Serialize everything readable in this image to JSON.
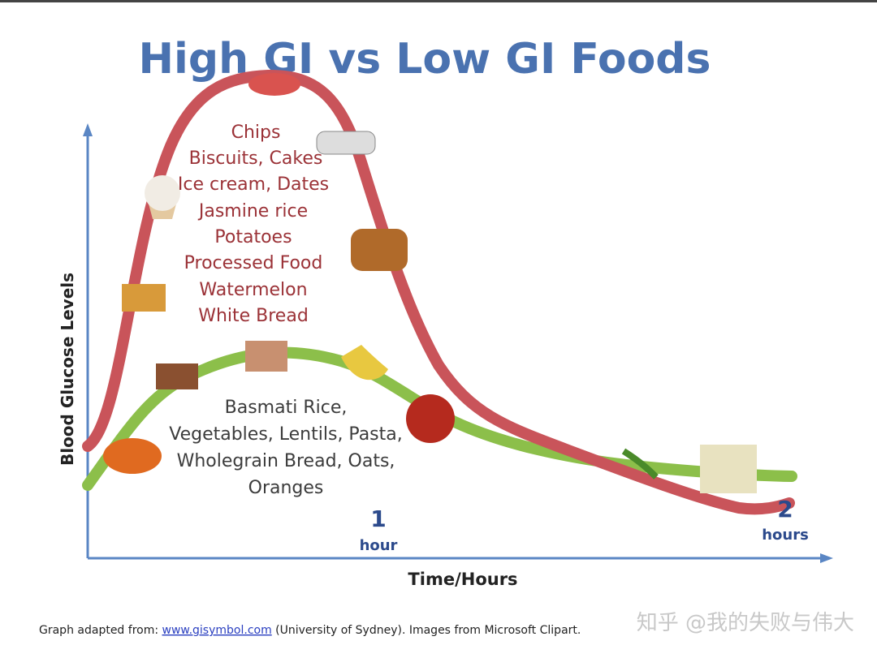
{
  "title": "High GI vs Low GI Foods",
  "y_axis_label": "Blood Glucose Levels",
  "x_axis_label": "Time/Hours",
  "high_gi_foods": [
    "Chips",
    "Biscuits, Cakes",
    "Ice cream, Dates",
    "Jasmine rice",
    "Potatoes",
    "Processed Food",
    "Watermelon",
    "White Bread"
  ],
  "low_gi_foods": [
    "Basmati Rice,",
    "Vegetables, Lentils, Pasta,",
    "Wholegrain Bread, Oats,",
    "Oranges"
  ],
  "time_markers": [
    {
      "number": "1",
      "unit": "hour"
    },
    {
      "number": "2",
      "unit": "hours"
    }
  ],
  "footer": {
    "prefix": "Graph adapted from: ",
    "link": "www.gisymbol.com",
    "suffix": " (University of Sydney). Images from Microsoft Clipart."
  },
  "watermark": "知乎 @我的失败与伟大"
}
